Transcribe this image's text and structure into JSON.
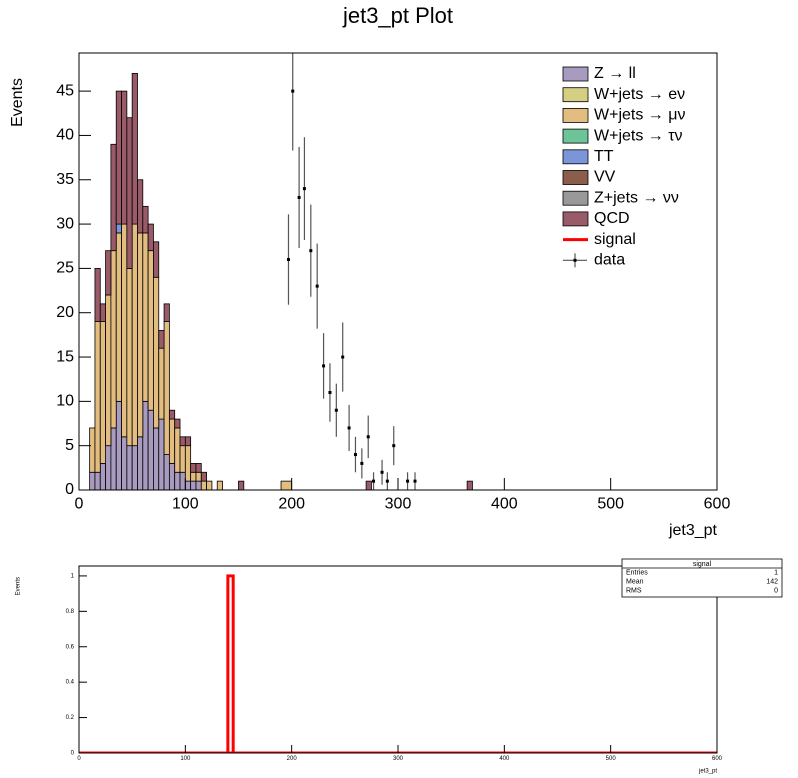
{
  "charts": [
    {
      "type": "histogram",
      "title": "jet3_pt Plot",
      "xlabel": "jet3_pt",
      "ylabel": "Events",
      "stacked": true,
      "legend": "top-right",
      "xlim": [
        0,
        600
      ],
      "xticks": [
        0,
        100,
        200,
        300,
        400,
        500,
        600
      ],
      "ylim": [
        0,
        49.3
      ],
      "yticks": [
        0,
        5,
        10,
        15,
        20,
        25,
        30,
        35,
        40,
        45
      ],
      "bins": [
        10,
        15,
        20,
        25,
        30,
        35,
        40,
        45,
        50,
        55,
        60,
        65,
        70,
        75,
        80,
        85,
        90,
        95,
        100,
        105,
        110,
        115,
        120,
        125,
        130,
        135,
        150,
        155,
        190,
        200,
        270,
        275,
        365,
        370
      ],
      "series": [
        {
          "name": "Z → ll",
          "color": "#a89bbf",
          "values": [
            2,
            2,
            3,
            5,
            7,
            10,
            6,
            5,
            5,
            6,
            10,
            9,
            7,
            8,
            4,
            3,
            2,
            2,
            1,
            1,
            1,
            0,
            0,
            0,
            0,
            0,
            0,
            0,
            0,
            0,
            0,
            0,
            0
          ]
        },
        {
          "name": "W+jets → eν",
          "color": "#d4cf83",
          "values": [
            0,
            0,
            0,
            0,
            0,
            0,
            0,
            0,
            0,
            0,
            0,
            0,
            0,
            0,
            0,
            0,
            0,
            0,
            0,
            0,
            0,
            0,
            0,
            0,
            0,
            0,
            0,
            0,
            0,
            0,
            0,
            0,
            0
          ]
        },
        {
          "name": "W+jets → μν",
          "color": "#e3bc80",
          "values": [
            5,
            17,
            16,
            17,
            20,
            19,
            24,
            20,
            25,
            23,
            19,
            18,
            17,
            8,
            15,
            5,
            5,
            3,
            4,
            1,
            1,
            1,
            1,
            0,
            1,
            0,
            0,
            0,
            1,
            0,
            0,
            0,
            0
          ]
        },
        {
          "name": "W+jets → τν",
          "color": "#6cc498",
          "values": [
            0,
            0,
            0,
            0,
            0,
            0,
            0,
            0,
            0,
            0,
            0,
            0,
            0,
            0,
            0,
            0,
            0,
            0,
            0,
            0,
            0,
            0,
            0,
            0,
            0,
            0,
            0,
            0,
            0,
            0,
            0,
            0,
            0
          ]
        },
        {
          "name": "TT",
          "color": "#7b96d8",
          "values": [
            0,
            0,
            0,
            0,
            0,
            1,
            0,
            0,
            0,
            0,
            0,
            0,
            0,
            0,
            0,
            0,
            0,
            0,
            0,
            0,
            0,
            0,
            0,
            0,
            0,
            0,
            0,
            0,
            0,
            0,
            0,
            0,
            0
          ]
        },
        {
          "name": "VV",
          "color": "#8b5e4b",
          "values": [
            0,
            0,
            0,
            0,
            0,
            0,
            0,
            0,
            0,
            0,
            0,
            0,
            0,
            0,
            0,
            0,
            0,
            0,
            0,
            0,
            0,
            0,
            0,
            0,
            0,
            0,
            0,
            0,
            0,
            0,
            0,
            0,
            0
          ]
        },
        {
          "name": "Z+jets → νν",
          "color": "#999999",
          "values": [
            0,
            0,
            0,
            0,
            0,
            0,
            0,
            0,
            0,
            0,
            0,
            0,
            0,
            0,
            0,
            0,
            0,
            0,
            0,
            0,
            0,
            0,
            0,
            0,
            0,
            0,
            0,
            0,
            0,
            0,
            0,
            0,
            0
          ]
        },
        {
          "name": "QCD",
          "color": "#9a5b69",
          "values": [
            0,
            6,
            2,
            5,
            12,
            15,
            15,
            17,
            17,
            6,
            3,
            3,
            4,
            2,
            2,
            1,
            1,
            1,
            1,
            1,
            1,
            1,
            0,
            0,
            0,
            0,
            1,
            0,
            0,
            0,
            1,
            0,
            1
          ]
        },
        {
          "name": "signal",
          "color": "#ff0000"
        }
      ],
      "data": {
        "name": "data",
        "color": "#000000",
        "x": [
          197,
          201,
          207,
          212,
          218,
          224,
          230,
          236,
          242,
          248,
          254,
          260,
          266,
          272,
          277,
          285,
          290,
          296,
          309,
          316
        ],
        "values": [
          26,
          45,
          33,
          34,
          27,
          23,
          14,
          11,
          9,
          15,
          7,
          4,
          3,
          6,
          1,
          2,
          1,
          5,
          1,
          1
        ],
        "errors": [
          5.1,
          6.7,
          5.7,
          5.8,
          5.2,
          4.8,
          3.7,
          3.3,
          3,
          3.9,
          2.6,
          2,
          1.7,
          2.4,
          1,
          1.4,
          1,
          2.2,
          1,
          1
        ]
      }
    },
    {
      "type": "histogram",
      "xlabel": "jet3_pt",
      "ylabel": "Events",
      "stacked": false,
      "xlim": [
        0,
        600
      ],
      "xticks": [
        0,
        100,
        200,
        300,
        400,
        500,
        600
      ],
      "ylim": [
        0,
        1.056
      ],
      "yticks": [
        0,
        0.2,
        0.4,
        0.6,
        0.8,
        1
      ],
      "bins": [
        140,
        145
      ],
      "series": [
        {
          "name": "signal",
          "color": "#ff0000",
          "values": [
            1
          ]
        }
      ],
      "stats": {
        "title": "signal",
        "rows": [
          [
            "Entries",
            1
          ],
          [
            "Mean",
            142
          ],
          [
            "RMS",
            0
          ]
        ]
      }
    }
  ]
}
